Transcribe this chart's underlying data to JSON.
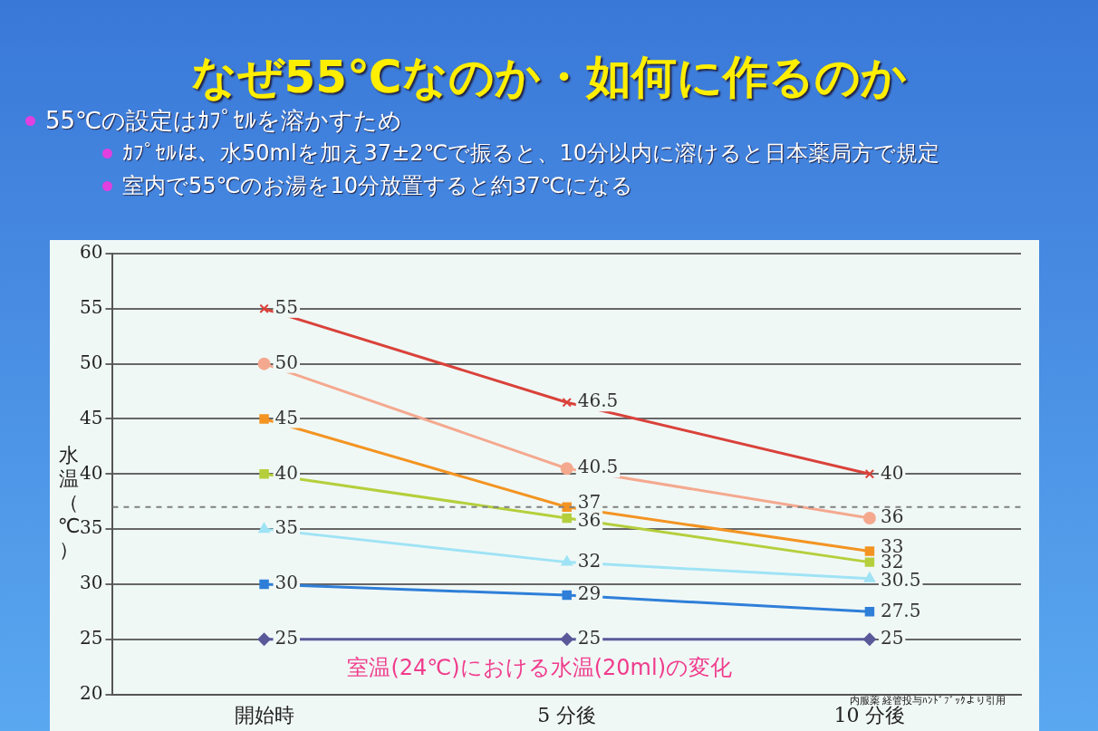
{
  "chart_data": {
    "type": "line",
    "title": "なぜ55℃なのか・如何に作るのか",
    "subtitle": "室温(24℃)における水温(20ml)の変化",
    "ylabel": "水温（℃）",
    "annotations": [
      "55℃の設定はｶﾌﾟｾﾙを溶かすため",
      "ｶﾌﾟｾﾙは、水50mlを加え37±2℃で振ると、10分以内に溶けると日本薬局方で規定",
      "室内で55℃のお湯を10分放置すると約37℃になる",
      "内服薬 経管投与ﾊﾝﾄﾞﾌﾞｯｸより引用"
    ],
    "categories": [
      "開始時",
      "5 分後",
      "10 分後"
    ],
    "series": [
      {
        "color": "#d9423a",
        "marker": "cross",
        "values": [
          55,
          46.5,
          40
        ]
      },
      {
        "color": "#f4a98f",
        "marker": "circle",
        "values": [
          50,
          40.5,
          36
        ]
      },
      {
        "color": "#f39422",
        "marker": "square",
        "values": [
          45,
          37,
          33
        ]
      },
      {
        "color": "#b5cf3c",
        "marker": "square",
        "values": [
          40,
          36,
          32
        ]
      },
      {
        "color": "#9fe3f5",
        "marker": "triangle",
        "values": [
          35,
          32,
          30.5
        ]
      },
      {
        "color": "#2f7fd8",
        "marker": "square",
        "values": [
          30,
          29,
          27.5
        ]
      },
      {
        "color": "#5a5a9a",
        "marker": "diamond",
        "values": [
          25,
          25,
          25
        ]
      }
    ],
    "ylim": [
      20,
      60
    ],
    "yticks": [
      20,
      25,
      30,
      35,
      40,
      45,
      50,
      55,
      60
    ],
    "grid": "y",
    "legend": false,
    "data_labels": true,
    "ref_lines": [
      {
        "axis": "y",
        "value": 37,
        "color": "#808080",
        "line_style": "dashed"
      }
    ]
  }
}
